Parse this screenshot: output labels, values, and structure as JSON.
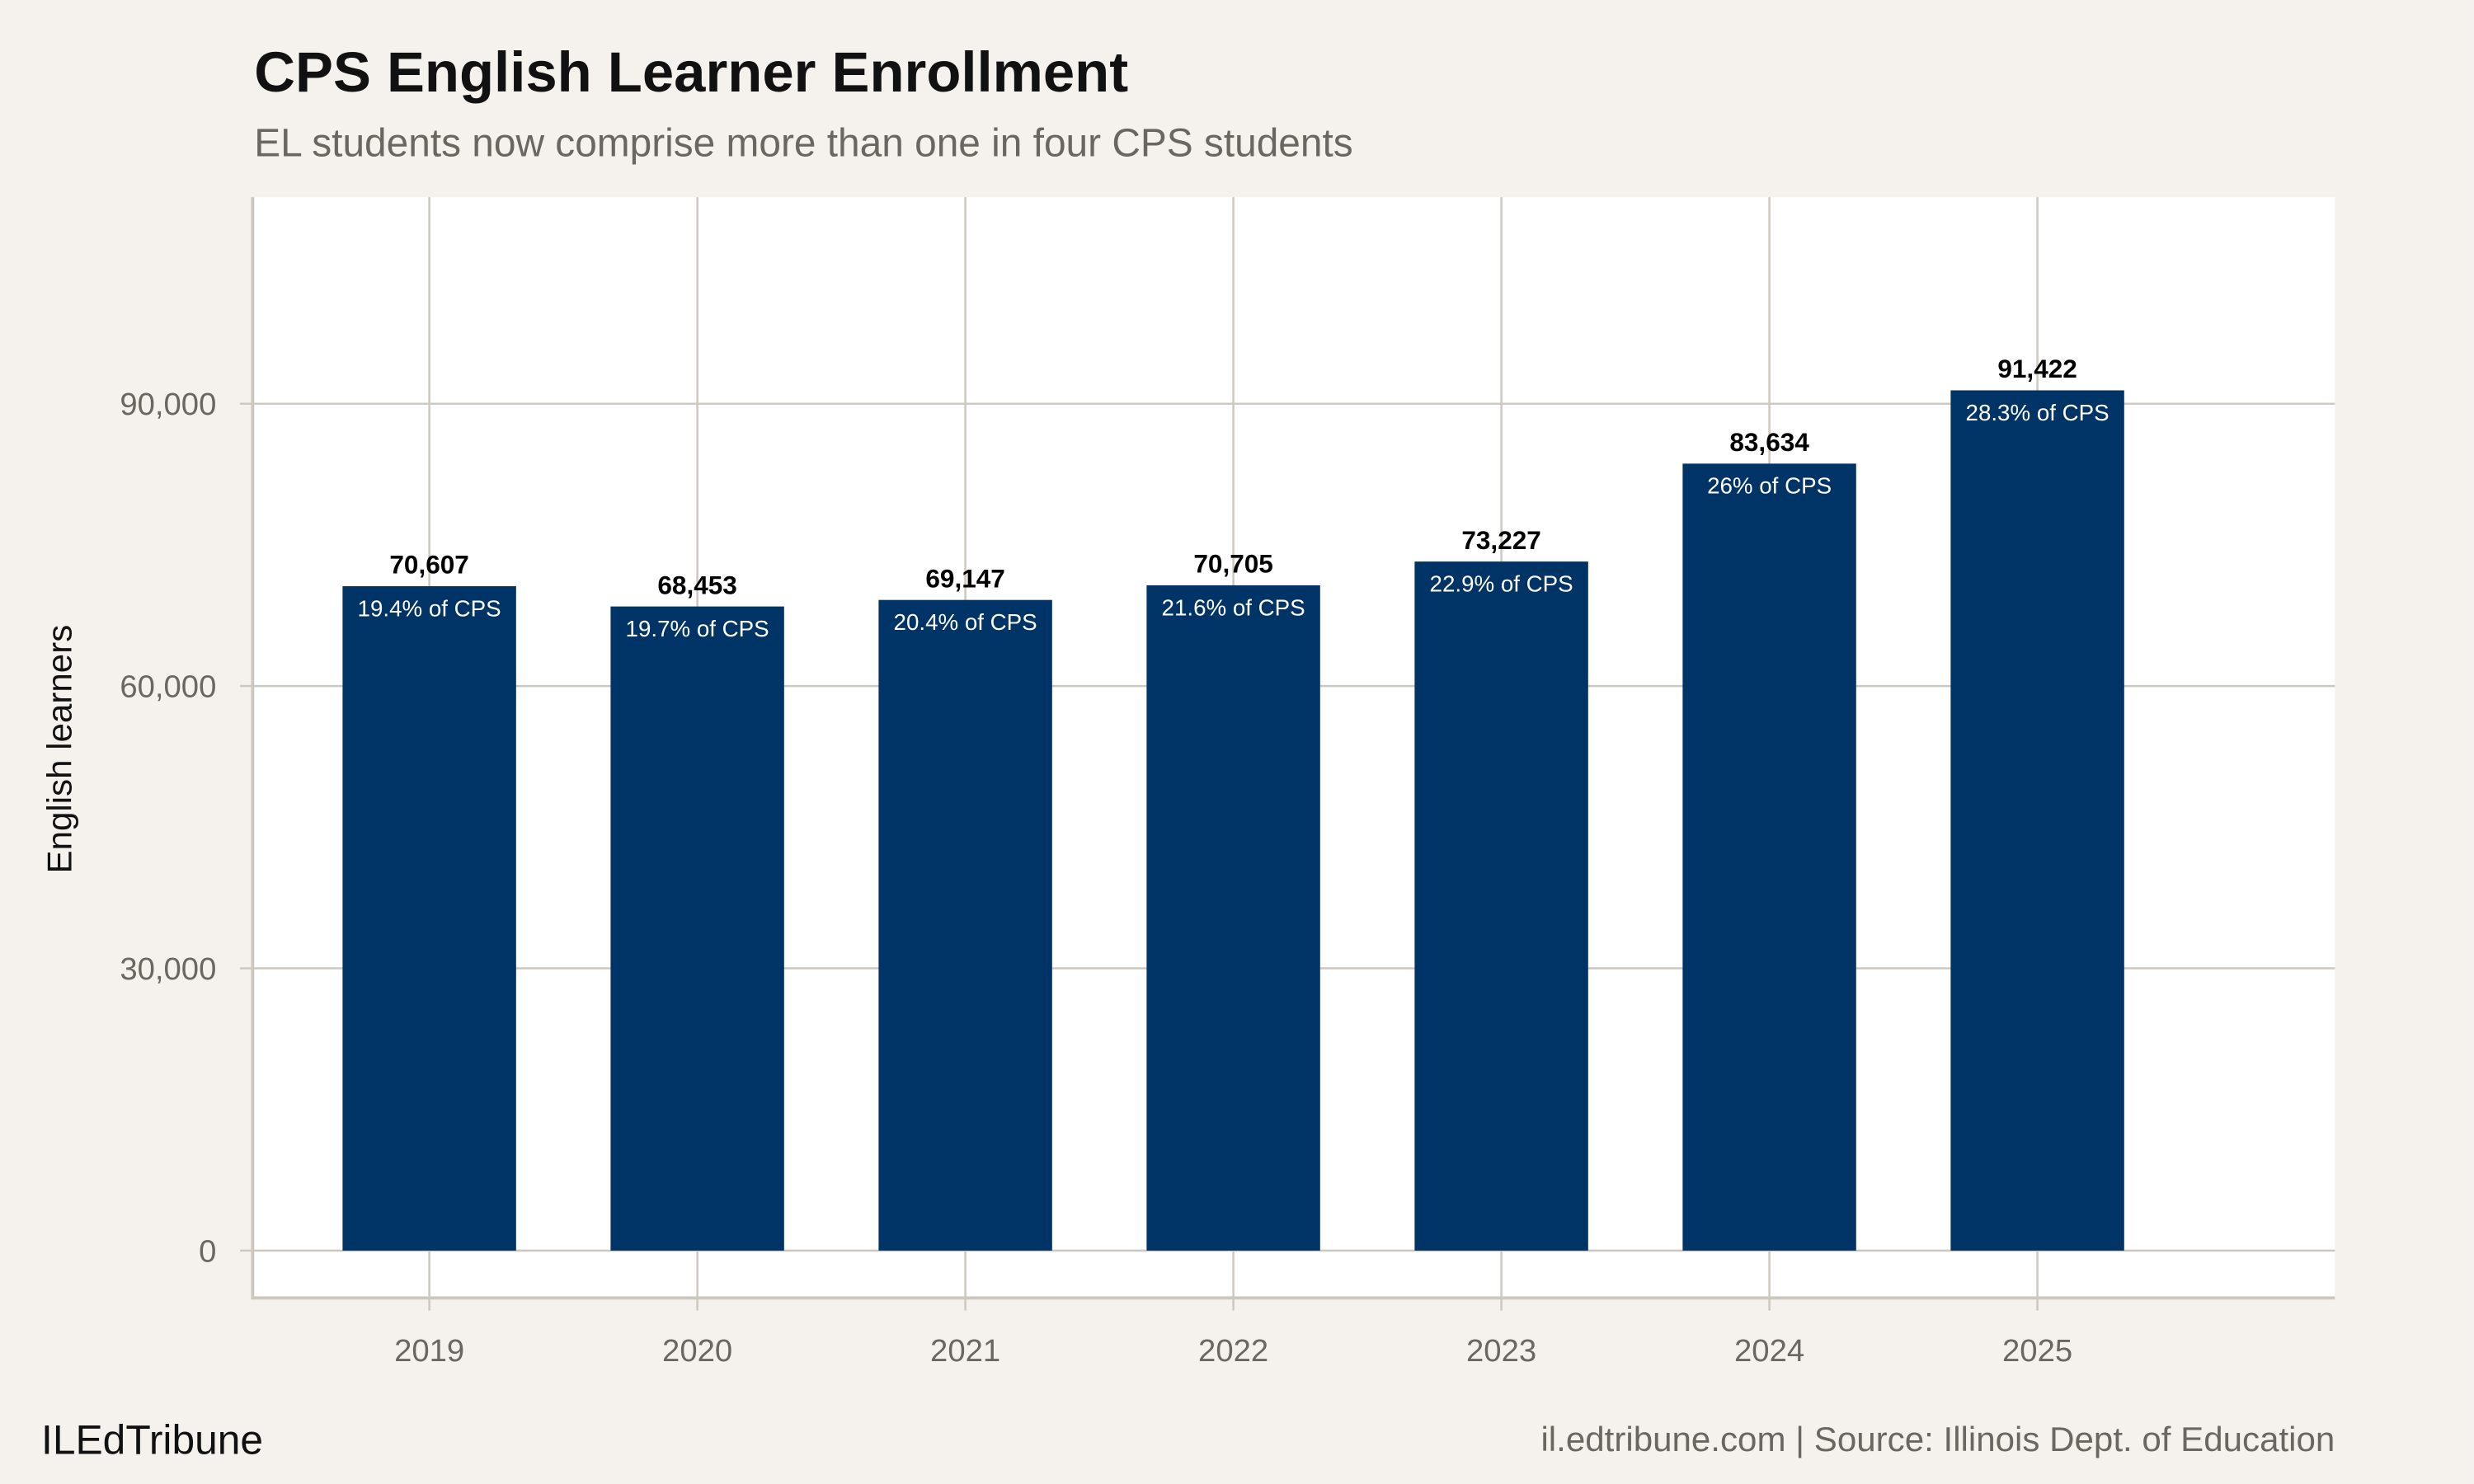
{
  "chart_data": {
    "type": "bar",
    "title": "CPS English Learner Enrollment",
    "subtitle": "EL students now comprise more than one in four CPS students",
    "xlabel": "",
    "ylabel": "English learners",
    "categories": [
      "2019",
      "2020",
      "2021",
      "2022",
      "2023",
      "2024",
      "2025"
    ],
    "values": [
      70607,
      68453,
      69147,
      70705,
      73227,
      83634,
      91422
    ],
    "value_labels": [
      "70,607",
      "68,453",
      "69,147",
      "70,705",
      "73,227",
      "83,634",
      "91,422"
    ],
    "share_labels": [
      "19.4% of CPS",
      "19.7% of CPS",
      "20.4% of CPS",
      "21.6% of CPS",
      "22.9% of CPS",
      "26% of CPS",
      "28.3% of CPS"
    ],
    "yticks": [
      0,
      30000,
      60000,
      90000
    ],
    "ytick_labels": [
      "0",
      "30,000",
      "60,000",
      "90,000"
    ],
    "ylim": [
      -5000,
      112000
    ],
    "grid": true,
    "legend": "none",
    "colors": {
      "bar": "#003366",
      "background": "#f5f2ee",
      "panel": "#ffffff",
      "grid": "#cdc8bf"
    }
  },
  "footer": {
    "brand": "ILEdTribune",
    "source": "il.edtribune.com | Source: Illinois Dept. of Education"
  }
}
